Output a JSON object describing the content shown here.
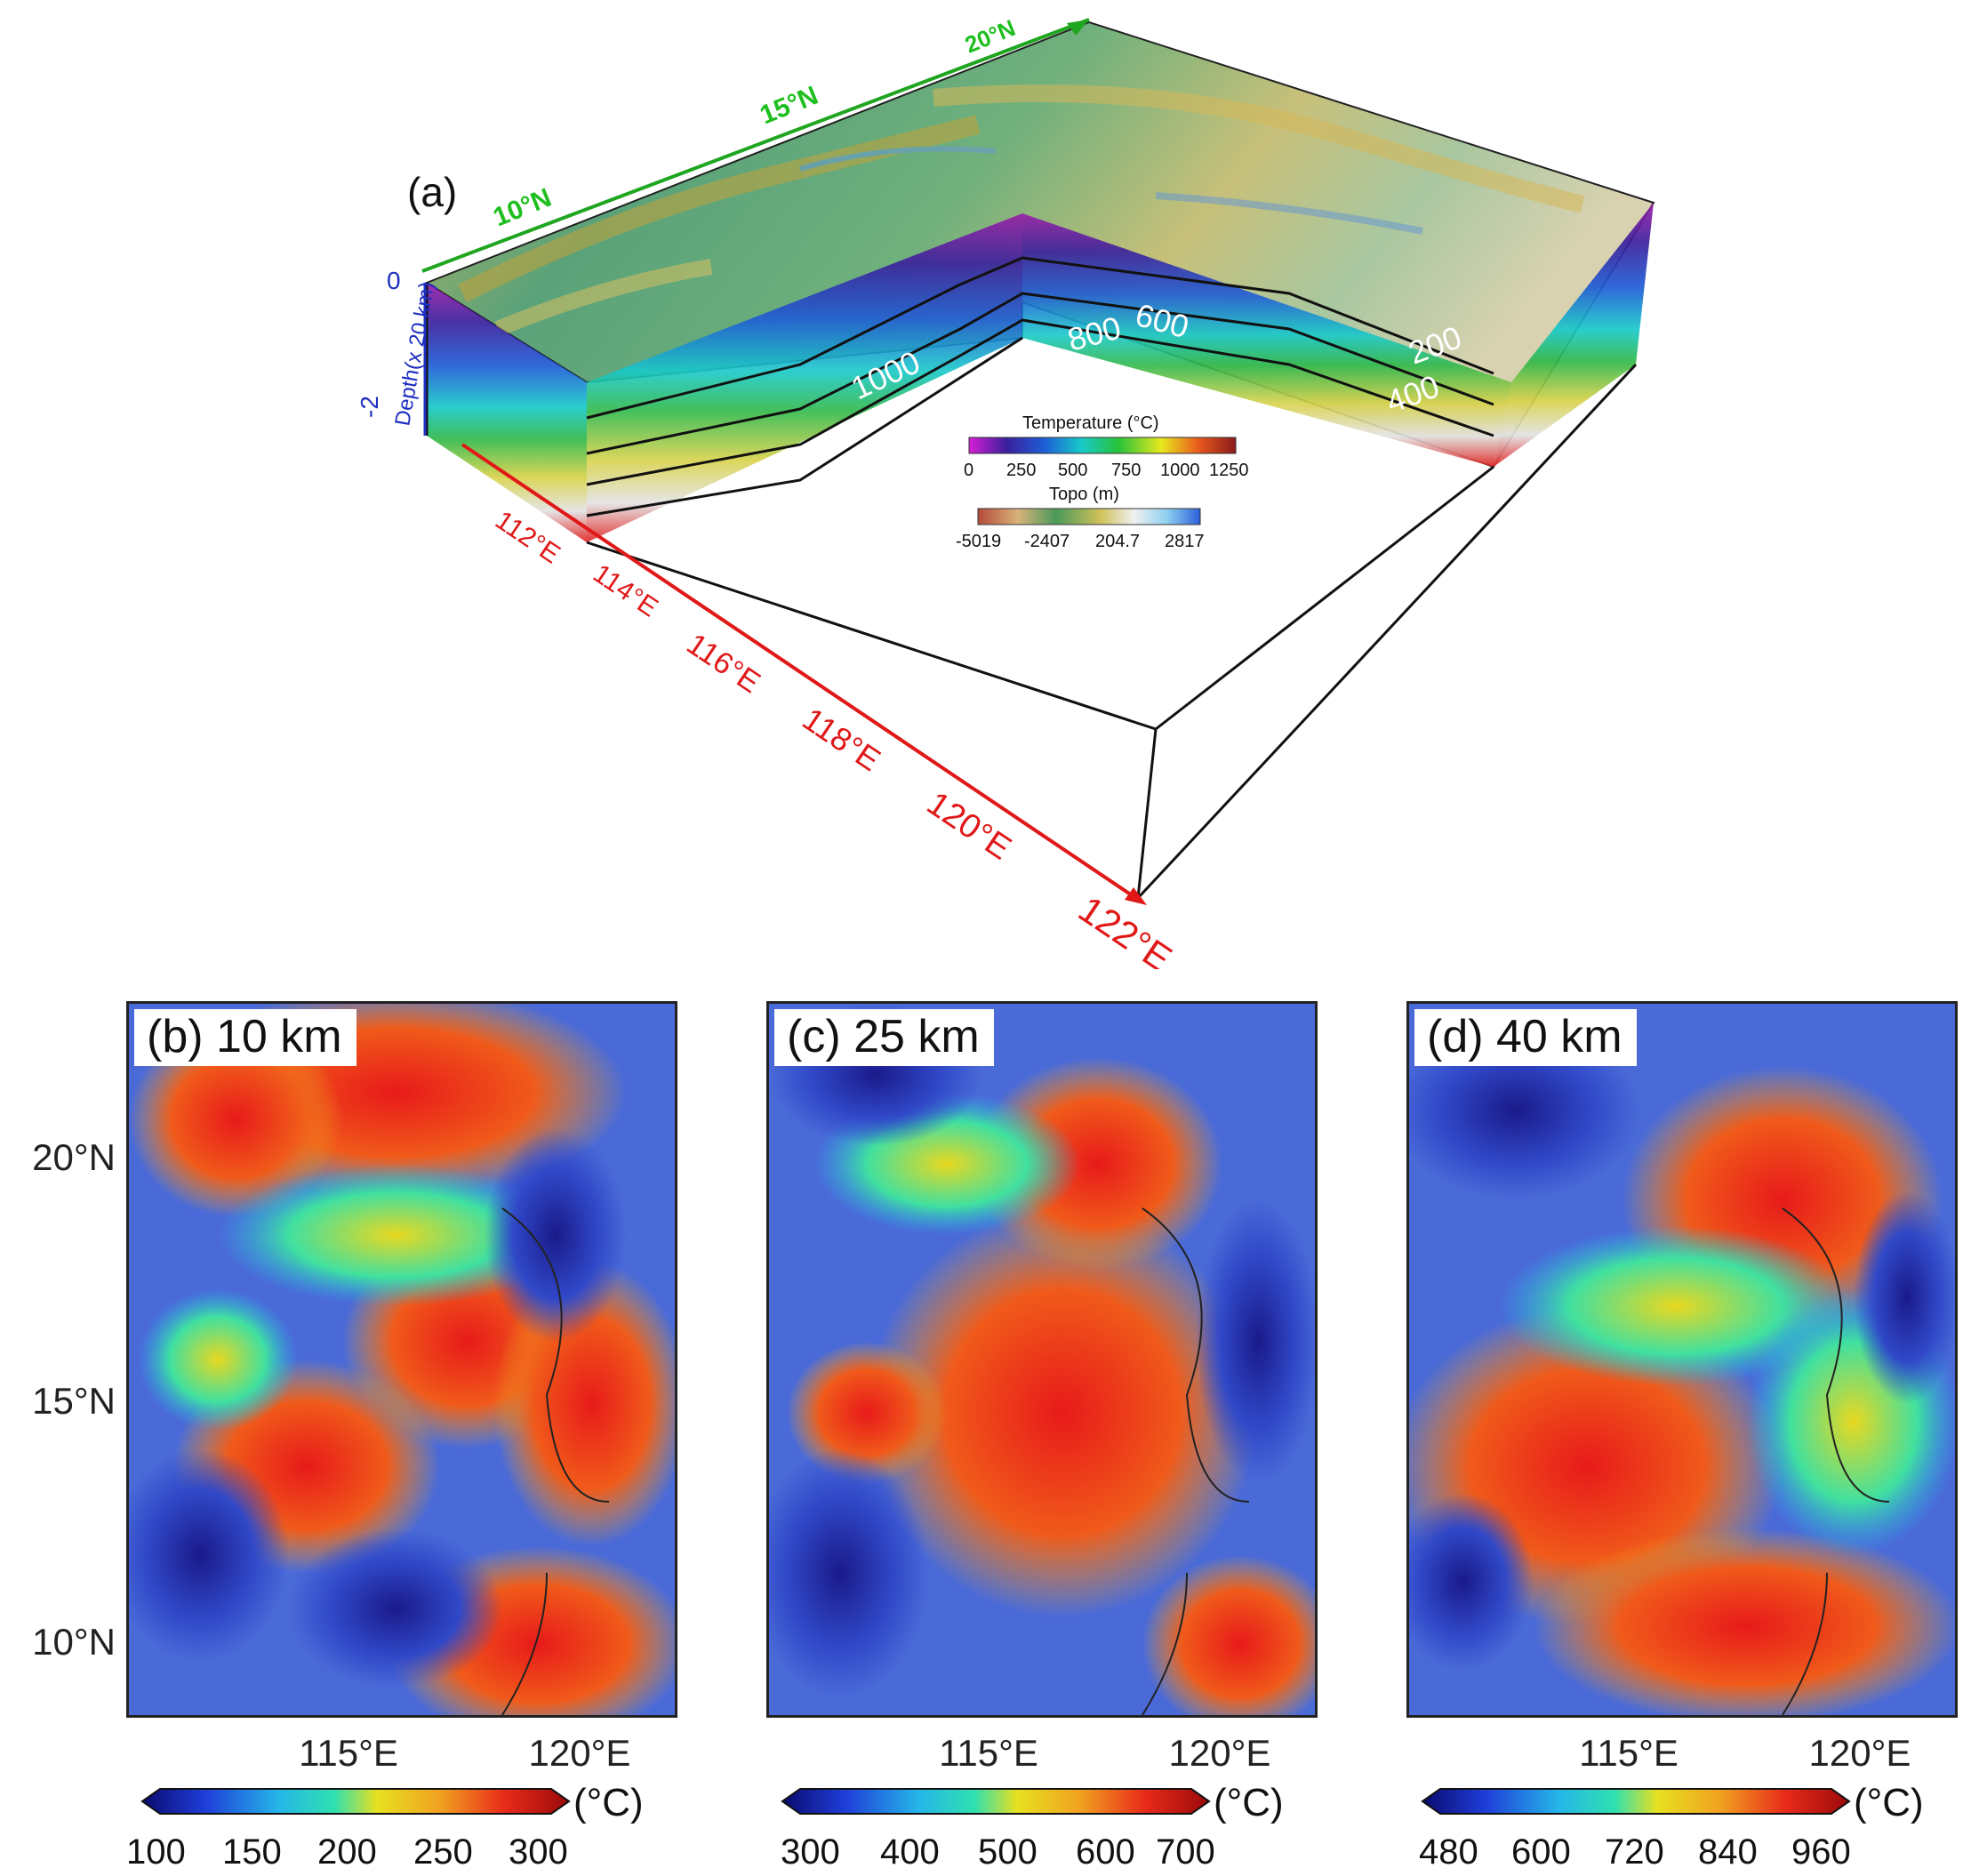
{
  "panel_a": {
    "label": "(a)",
    "lat_ticks": [
      "10°N",
      "15°N",
      "20°N"
    ],
    "lon_ticks": [
      "112°E",
      "114°E",
      "116°E",
      "118°E",
      "120°E",
      "122°E"
    ],
    "depth_axis_label": "Depth(x 20 km)",
    "depth_ticks": [
      "0",
      "-2"
    ],
    "isotherm_labels": [
      "200",
      "400",
      "600",
      "800",
      "1000"
    ],
    "temperature_legend": {
      "title": "Temperature (°C)",
      "ticks": [
        "0",
        "250",
        "500",
        "750",
        "1000",
        "1250"
      ],
      "colors": [
        "#d61fd6",
        "#3a1f9c",
        "#1e5cd6",
        "#18c9c9",
        "#27c23a",
        "#e8e81e",
        "#e85a1e",
        "#8a1a1a"
      ]
    },
    "topo_legend": {
      "title": "Topo (m)",
      "ticks": [
        "-5019",
        "-2407",
        "204.7",
        "2817"
      ],
      "colors": [
        "#b54a3a",
        "#d9b27a",
        "#4a9a5a",
        "#cfc15a",
        "#f0f0ee",
        "#8fd0f0",
        "#2b5fd9"
      ]
    }
  },
  "depth_panels": [
    {
      "label": "(b) 10 km",
      "colorbar_ticks": [
        "100",
        "150",
        "200",
        "250",
        "300"
      ],
      "unit": "(°C)"
    },
    {
      "label": "(c) 25 km",
      "colorbar_ticks": [
        "300",
        "400",
        "500",
        "600",
        "700"
      ],
      "unit": "(°C)"
    },
    {
      "label": "(d) 40 km",
      "colorbar_ticks": [
        "480",
        "600",
        "720",
        "840",
        "960"
      ],
      "unit": "(°C)"
    }
  ],
  "map_axes": {
    "y_ticks": [
      "20°N",
      "15°N",
      "10°N"
    ],
    "x_ticks": [
      "115°E",
      "120°E"
    ]
  },
  "colorbar_colors": [
    "#0a0a6e",
    "#1f3fd9",
    "#25b6e8",
    "#2fe0b0",
    "#e8e020",
    "#f0a020",
    "#e82a1a",
    "#9a0a0a"
  ]
}
